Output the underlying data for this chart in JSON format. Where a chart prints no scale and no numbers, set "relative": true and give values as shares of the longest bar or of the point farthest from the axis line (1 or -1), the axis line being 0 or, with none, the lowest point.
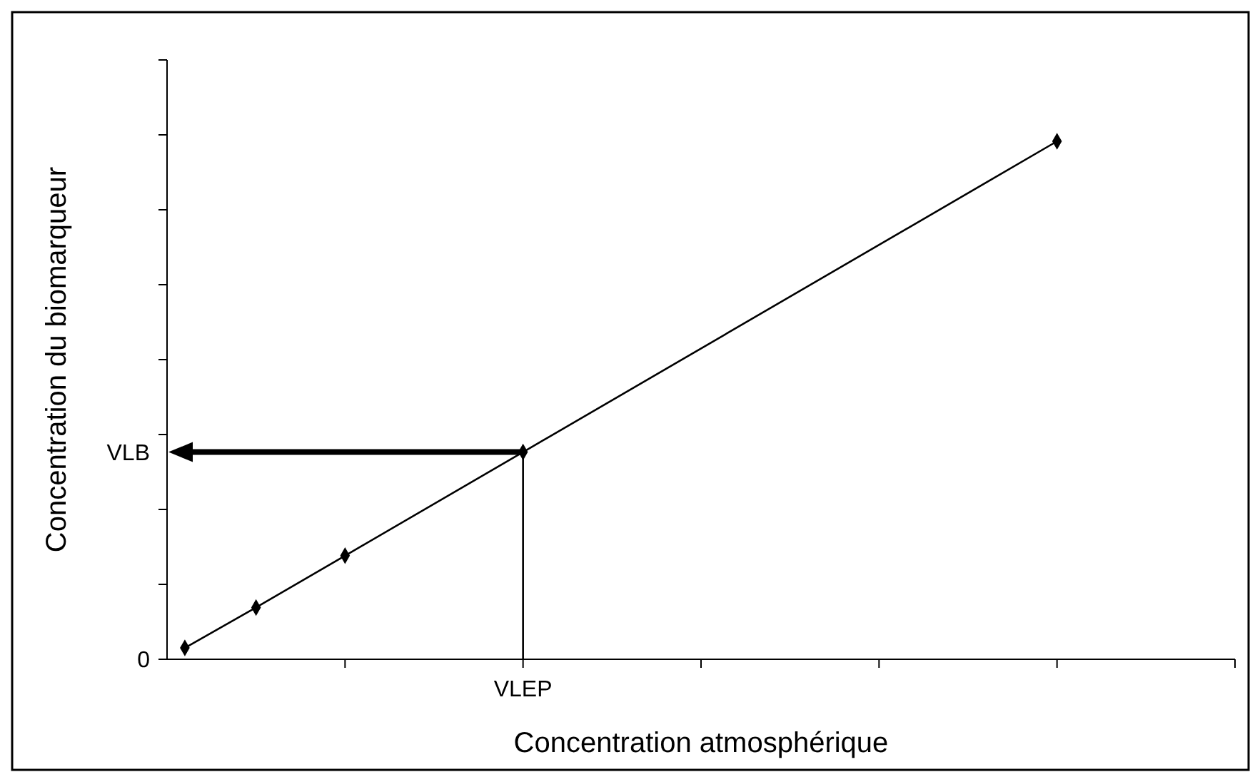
{
  "chart_data": {
    "type": "line",
    "xlabel": "Concentration atmosphérique",
    "ylabel": "Concentration du biomarqueur",
    "relative": true,
    "categories": [
      null,
      null,
      null,
      null,
      null,
      null,
      null,
      null,
      null,
      null,
      null,
      null,
      null,
      null,
      null,
      null,
      null,
      null,
      null,
      null,
      null,
      null,
      null,
      null,
      null,
      null,
      null,
      null,
      null,
      null,
      null,
      null,
      null,
      null,
      null,
      null,
      null,
      null,
      null,
      null,
      null,
      null,
      null,
      null,
      null,
      null,
      null,
      null,
      null,
      null,
      null,
      null,
      null,
      null,
      null,
      null,
      null,
      null,
      null,
      null,
      null
    ],
    "series": [
      {
        "color": "#000000",
        "values": [
          null,
          0.022,
          null,
          null,
          null,
          0.1,
          null,
          null,
          null,
          null,
          0.2,
          null,
          null,
          null,
          null,
          null,
          null,
          null,
          null,
          null,
          0.4,
          null,
          null,
          null,
          null,
          null,
          null,
          null,
          null,
          null,
          null,
          null,
          null,
          null,
          null,
          null,
          null,
          null,
          null,
          null,
          null,
          null,
          null,
          null,
          null,
          null,
          null,
          null,
          null,
          null,
          1.0,
          null,
          null,
          null,
          null,
          null,
          null,
          null,
          null,
          null,
          null
        ]
      }
    ],
    "annotations": [
      "0",
      "VLEP"
    ],
    "ref_lines": [
      {
        "axis": "y",
        "value": 0.4,
        "label": "VLB",
        "color": "#000000"
      }
    ],
    "marker": "diamond",
    "line_style": "solid"
  }
}
